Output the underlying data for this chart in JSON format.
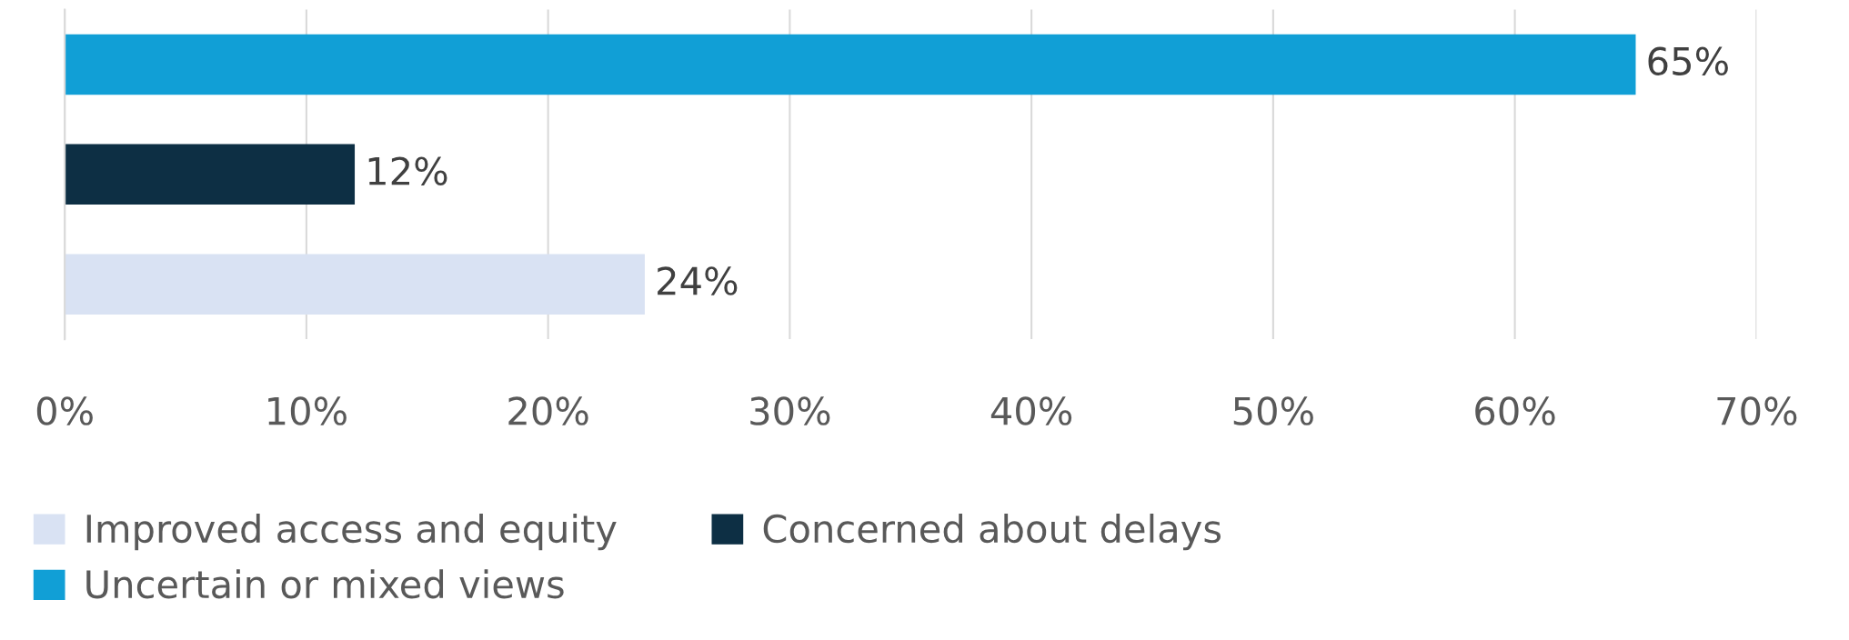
{
  "chart_data": {
    "type": "bar",
    "orientation": "horizontal",
    "categories": [
      null,
      null,
      null
    ],
    "series": [
      {
        "name": "Improved access and equity",
        "color": "#d9e2f3",
        "values": [
          null,
          null,
          24
        ],
        "value_labels": [
          null,
          null,
          "24%"
        ]
      },
      {
        "name": "Concerned about delays",
        "color": "#0d2f44",
        "values": [
          null,
          12,
          null
        ],
        "value_labels": [
          null,
          "12%",
          null
        ]
      },
      {
        "name": "Uncertain or mixed views",
        "color": "#119fd6",
        "values": [
          65,
          null,
          null
        ],
        "value_labels": [
          "65%",
          null,
          null
        ]
      }
    ],
    "xlim": [
      0,
      70
    ],
    "xticks": [
      {
        "value": 0,
        "label": "0%"
      },
      {
        "value": 10,
        "label": "10%"
      },
      {
        "value": 20,
        "label": "20%"
      },
      {
        "value": 30,
        "label": "30%"
      },
      {
        "value": 40,
        "label": "40%"
      },
      {
        "value": 50,
        "label": "50%"
      },
      {
        "value": 60,
        "label": "60%"
      },
      {
        "value": 70,
        "label": "70%"
      }
    ],
    "grid": "x",
    "legend": "bottom"
  }
}
